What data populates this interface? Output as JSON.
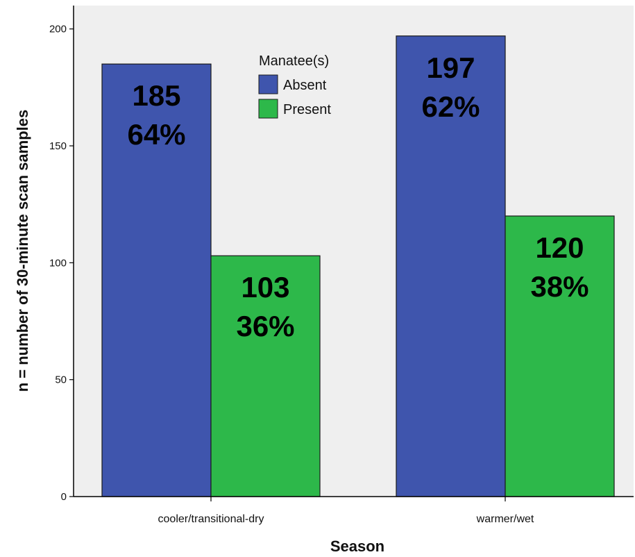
{
  "chart_data": {
    "type": "bar",
    "title": "",
    "xlabel": "Season",
    "ylabel": "n = number of 30-minute scan samples",
    "categories": [
      "cooler/transitional-dry",
      "warmer/wet"
    ],
    "series": [
      {
        "name": "Absent",
        "values": [
          185,
          197
        ],
        "percent_labels": [
          "64%",
          "62%"
        ],
        "color": "#3f55ad"
      },
      {
        "name": "Present",
        "values": [
          103,
          120
        ],
        "percent_labels": [
          "36%",
          "38%"
        ],
        "color": "#2db84a"
      }
    ],
    "ylim": [
      0,
      210
    ],
    "yticks": [
      0,
      50,
      100,
      150,
      200
    ],
    "legend": {
      "title": "Manatee(s)",
      "placement": "top-center"
    },
    "grid": false,
    "colors": {
      "plot_background": "#efefef",
      "axis": "#000000"
    }
  }
}
